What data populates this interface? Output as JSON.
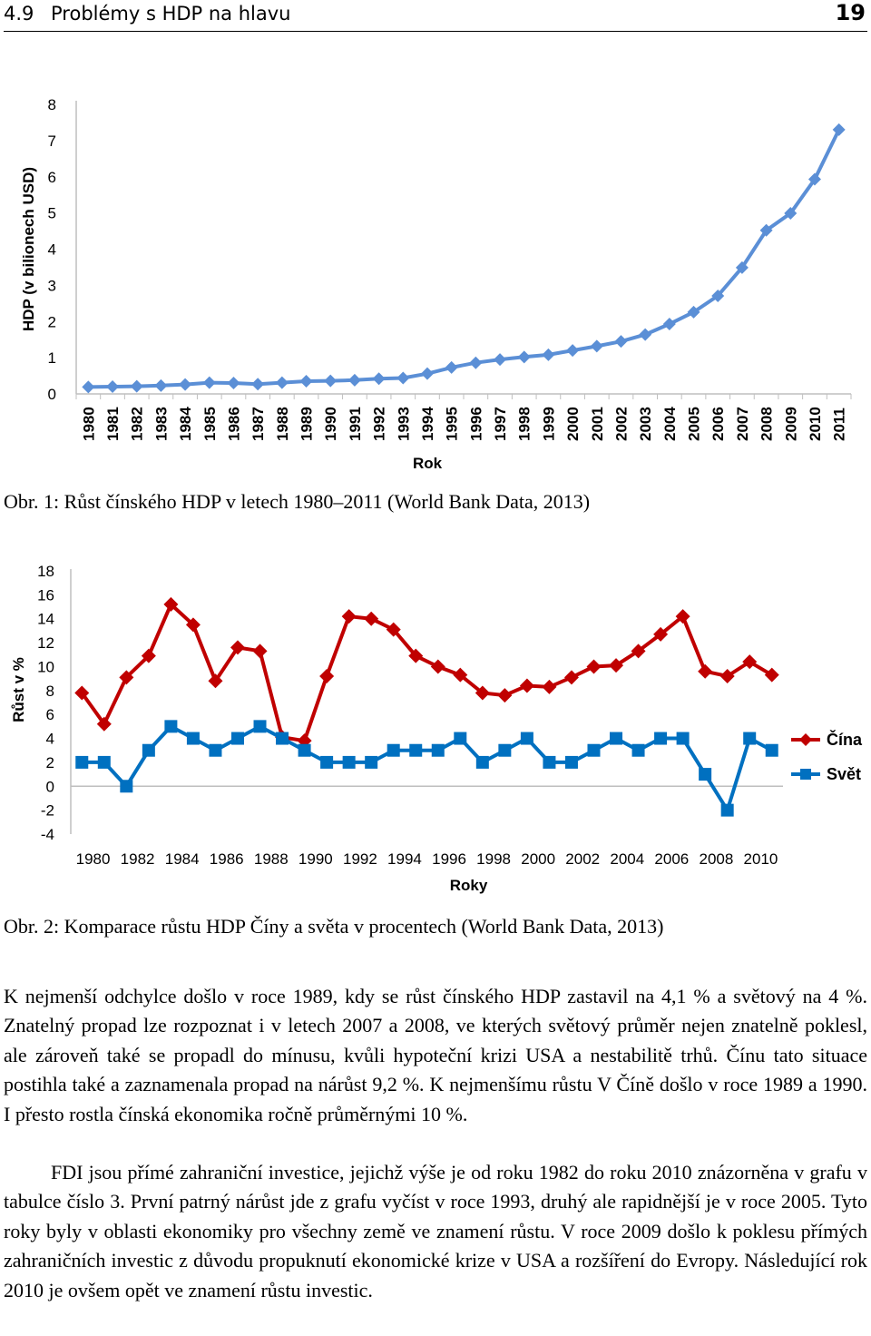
{
  "header": {
    "section": "4.9",
    "title": "Problémy s HDP na hlavu",
    "page": "19"
  },
  "figure1": {
    "caption": "Obr. 1: Růst čínského HDP v letech 1980–2011 (World Bank Data, 2013)",
    "chart_data": {
      "type": "line",
      "title": "",
      "xlabel": "Rok",
      "ylabel": "HDP (v bilionech USD)",
      "ylim": [
        0,
        8
      ],
      "yticks": [
        "0",
        "1",
        "2",
        "3",
        "4",
        "5",
        "6",
        "7",
        "8"
      ],
      "grid": false,
      "categories": [
        "1980",
        "1981",
        "1982",
        "1983",
        "1984",
        "1985",
        "1986",
        "1987",
        "1988",
        "1989",
        "1990",
        "1991",
        "1992",
        "1993",
        "1994",
        "1995",
        "1996",
        "1997",
        "1998",
        "1999",
        "2000",
        "2001",
        "2002",
        "2003",
        "2004",
        "2005",
        "2006",
        "2007",
        "2008",
        "2009",
        "2010",
        "2011"
      ],
      "values": [
        0.19,
        0.2,
        0.21,
        0.23,
        0.26,
        0.31,
        0.3,
        0.27,
        0.31,
        0.35,
        0.36,
        0.38,
        0.42,
        0.44,
        0.56,
        0.73,
        0.86,
        0.95,
        1.02,
        1.08,
        1.2,
        1.32,
        1.45,
        1.64,
        1.93,
        2.26,
        2.71,
        3.49,
        4.52,
        4.99,
        5.93,
        7.3
      ],
      "color": "#5b8fd6"
    }
  },
  "figure2": {
    "caption": "Obr. 2: Komparace růstu HDP Číny a světa v procentech (World Bank Data, 2013)",
    "chart_data": {
      "type": "line",
      "title": "",
      "xlabel": "Roky",
      "ylabel": "Růst v %",
      "ylim": [
        -4,
        18
      ],
      "yticks": [
        "-4",
        "-2",
        "0",
        "2",
        "4",
        "6",
        "8",
        "10",
        "12",
        "14",
        "16",
        "18"
      ],
      "xticks": [
        "1980",
        "1982",
        "1984",
        "1986",
        "1988",
        "1990",
        "1992",
        "1994",
        "1996",
        "1998",
        "2000",
        "2002",
        "2004",
        "2006",
        "2008",
        "2010"
      ],
      "grid": false,
      "legend": "right",
      "x": [
        1980,
        1981,
        1982,
        1983,
        1984,
        1985,
        1986,
        1987,
        1988,
        1989,
        1990,
        1991,
        1992,
        1993,
        1994,
        1995,
        1996,
        1997,
        1998,
        1999,
        2000,
        2001,
        2002,
        2003,
        2004,
        2005,
        2006,
        2007,
        2008,
        2009,
        2010,
        2011
      ],
      "series": [
        {
          "name": "Čína",
          "color": "#c00000",
          "marker": "diamond",
          "values": [
            7.8,
            5.2,
            9.1,
            10.9,
            15.2,
            13.5,
            8.8,
            11.6,
            11.3,
            4.1,
            3.8,
            9.2,
            14.2,
            14.0,
            13.1,
            10.9,
            10.0,
            9.3,
            7.8,
            7.6,
            8.4,
            8.3,
            9.1,
            10.0,
            10.1,
            11.3,
            12.7,
            14.2,
            9.6,
            9.2,
            10.4,
            9.3
          ]
        },
        {
          "name": "Svět",
          "color": "#0070c0",
          "marker": "square",
          "values": [
            2.0,
            2.0,
            0.0,
            3.0,
            5.0,
            4.0,
            3.0,
            4.0,
            5.0,
            4.0,
            3.0,
            2.0,
            2.0,
            2.0,
            3.0,
            3.0,
            3.0,
            4.0,
            2.0,
            3.0,
            4.0,
            2.0,
            2.0,
            3.0,
            4.0,
            3.0,
            4.0,
            4.0,
            1.0,
            -2.0,
            4.0,
            3.0
          ]
        }
      ]
    }
  },
  "paragraphs": [
    "K nejmenší odchylce došlo v roce 1989, kdy se růst čínského HDP zastavil na 4,1 % a světový na 4 %. Znatelný propad lze rozpoznat i v letech 2007 a 2008, ve kterých světový průměr nejen znatelně poklesl, ale zároveň také se propadl do mínusu, kvůli hypoteční krizi USA a nestabilitě trhů. Čínu tato situace postihla také a zaznamenala propad na nárůst 9,2 %. K nejmenšímu růstu V Číně došlo v roce 1989 a 1990. I přesto rostla čínská ekonomika ročně průměrnými 10 %.",
    "FDI jsou přímé zahraniční investice, jejichž výše je od roku 1982 do roku 2010 znázorněna v grafu v tabulce číslo 3. První patrný nárůst jde z grafu vyčíst v roce 1993, druhý ale rapidnější je v roce 2005. Tyto roky byly v oblasti ekonomiky pro všechny země ve znamení růstu. V roce 2009 došlo k poklesu přímých zahraničních investic z důvodu propuknutí ekonomické krize v USA a rozšíření do Evropy. Následující rok 2010 je ovšem opět ve znamení růstu investic."
  ]
}
